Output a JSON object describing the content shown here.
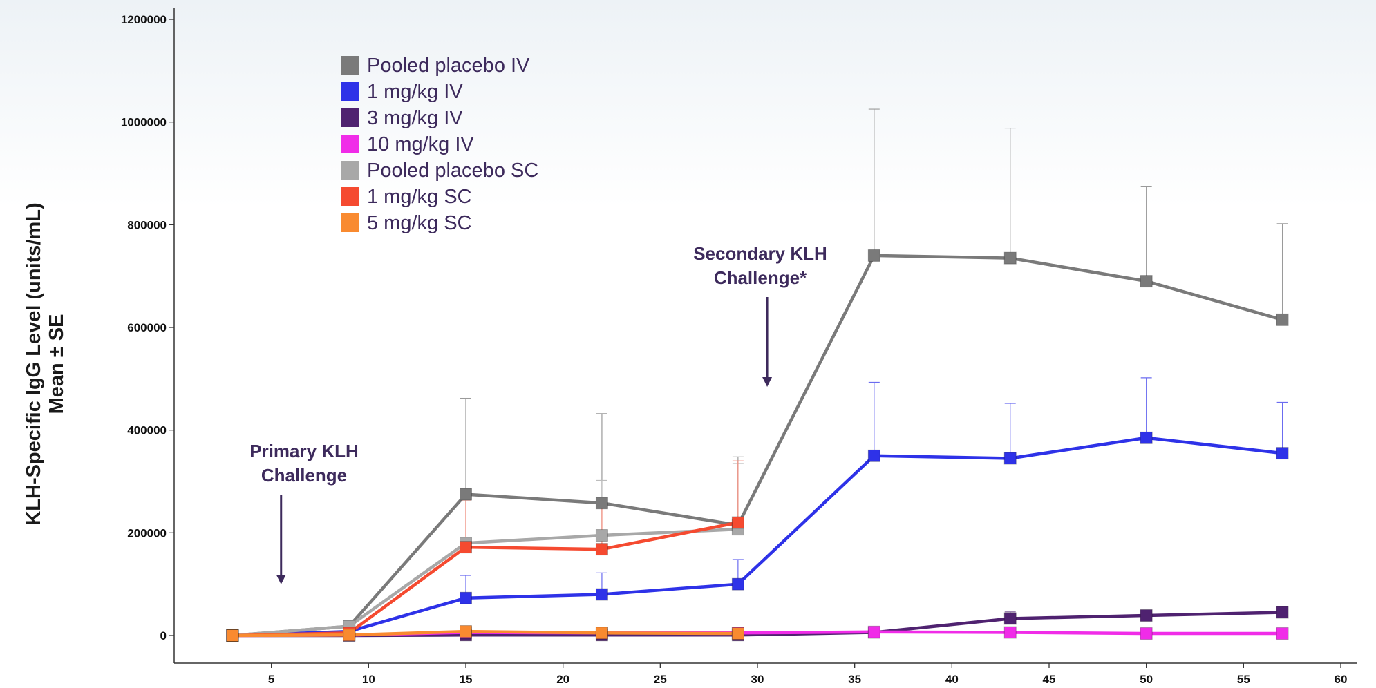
{
  "chart_data": {
    "type": "line",
    "xlim": [
      0,
      60
    ],
    "ylim": [
      0,
      1200000
    ],
    "xticks": [
      5,
      10,
      15,
      20,
      25,
      30,
      35,
      40,
      45,
      50,
      55,
      60
    ],
    "yticks": [
      0,
      200000,
      400000,
      600000,
      800000,
      1000000,
      1200000
    ],
    "ytick_labels": [
      "0",
      "200000",
      "400000",
      "600000",
      "800000",
      "1000000",
      "1200000"
    ],
    "xlabel": "",
    "ylabel": [
      "KLH-Specific IgG Level (units/mL)",
      "Mean ± SE"
    ],
    "legend_position": "top-left",
    "grid": false,
    "series": [
      {
        "name": "Pooled placebo IV",
        "color": "#7a7a7a",
        "error_color": "#9a9a9a",
        "x": [
          3,
          9,
          15,
          22,
          29,
          36,
          43,
          50,
          57
        ],
        "y": [
          0,
          18000,
          275000,
          258000,
          215000,
          740000,
          735000,
          690000,
          615000
        ],
        "yerr_upper": [
          0,
          28000,
          462000,
          432000,
          348000,
          1025000,
          988000,
          875000,
          802000
        ]
      },
      {
        "name": "1 mg/kg IV",
        "color": "#2e32e8",
        "error_color": "#6b6cf0",
        "x": [
          3,
          9,
          15,
          22,
          29,
          36,
          43,
          50,
          57
        ],
        "y": [
          0,
          8000,
          73000,
          80000,
          100000,
          350000,
          345000,
          385000,
          355000
        ],
        "yerr_upper": [
          0,
          12000,
          117000,
          122000,
          148000,
          493000,
          452000,
          502000,
          454000
        ]
      },
      {
        "name": "3 mg/kg IV",
        "color": "#4f2270",
        "error_color": "#7a5a95",
        "x": [
          3,
          9,
          15,
          22,
          29,
          36,
          43,
          50,
          57
        ],
        "y": [
          0,
          0,
          1000,
          1000,
          1000,
          6000,
          33000,
          39000,
          45000
        ],
        "yerr_upper": [
          0,
          0,
          2000,
          2000,
          2000,
          8000,
          46000,
          45000,
          57000
        ]
      },
      {
        "name": "10 mg/kg IV",
        "color": "#f02ce8",
        "error_color": "#f57ef0",
        "x": [
          3,
          9,
          15,
          22,
          29,
          36,
          43,
          50,
          57
        ],
        "y": [
          0,
          1000,
          6000,
          5000,
          5000,
          7000,
          6000,
          4000,
          4000
        ],
        "yerr_upper": [
          0,
          2000,
          9000,
          8000,
          8000,
          10000,
          9000,
          7000,
          7000
        ]
      },
      {
        "name": "Pooled placebo SC",
        "color": "#a8a8a8",
        "error_color": "#bdbdbd",
        "x": [
          3,
          9,
          15,
          22,
          29
        ],
        "y": [
          0,
          18000,
          180000,
          195000,
          207000
        ],
        "yerr_upper": [
          0,
          30000,
          265000,
          302000,
          335000
        ]
      },
      {
        "name": "1 mg/kg SC",
        "color": "#f54a30",
        "error_color": "#f58a7a",
        "x": [
          3,
          9,
          15,
          22,
          29
        ],
        "y": [
          0,
          5000,
          172000,
          168000,
          220000
        ],
        "yerr_upper": [
          0,
          12000,
          262000,
          255000,
          340000
        ]
      },
      {
        "name": "5 mg/kg SC",
        "color": "#f98a30",
        "error_color": "#f9aa70",
        "x": [
          3,
          9,
          15,
          22,
          29
        ],
        "y": [
          0,
          1000,
          8000,
          5000,
          4000
        ],
        "yerr_upper": [
          0,
          2000,
          12000,
          9000,
          8000
        ]
      }
    ],
    "annotations": [
      {
        "name": "primary",
        "lines": [
          "Primary KLH",
          "Challenge"
        ],
        "arrow_x": 5.5,
        "color": "#3d2a5c"
      },
      {
        "name": "secondary",
        "lines": [
          "Secondary KLH",
          "Challenge*"
        ],
        "arrow_x": 30.5,
        "color": "#3d2a5c"
      }
    ]
  }
}
